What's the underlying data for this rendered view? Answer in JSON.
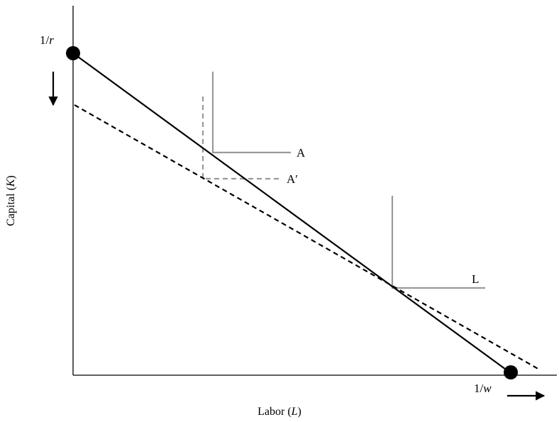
{
  "axes": {
    "x_label": "Labor (",
    "x_var": "L",
    "x_close": ")",
    "y_label": "Capital (",
    "y_var": "K",
    "y_close": ")"
  },
  "intercepts": {
    "k_intercept_label": "1/",
    "k_intercept_var": "r",
    "l_intercept_label": "1/",
    "l_intercept_var": "w"
  },
  "isoquants": [
    {
      "label": "A",
      "style": "solid",
      "color": "#999999"
    },
    {
      "label": "A′",
      "style": "dashed",
      "color": "#999999"
    },
    {
      "label": "L",
      "style": "solid",
      "color": "#999999"
    }
  ],
  "budget_lines": [
    {
      "style": "solid",
      "color": "#000000"
    },
    {
      "style": "dashed",
      "color": "#000000"
    }
  ],
  "arrows": [
    {
      "icon": "arrow-down-icon",
      "meaning": "1/r falls"
    },
    {
      "icon": "arrow-right-icon",
      "meaning": "1/w rises"
    }
  ]
}
